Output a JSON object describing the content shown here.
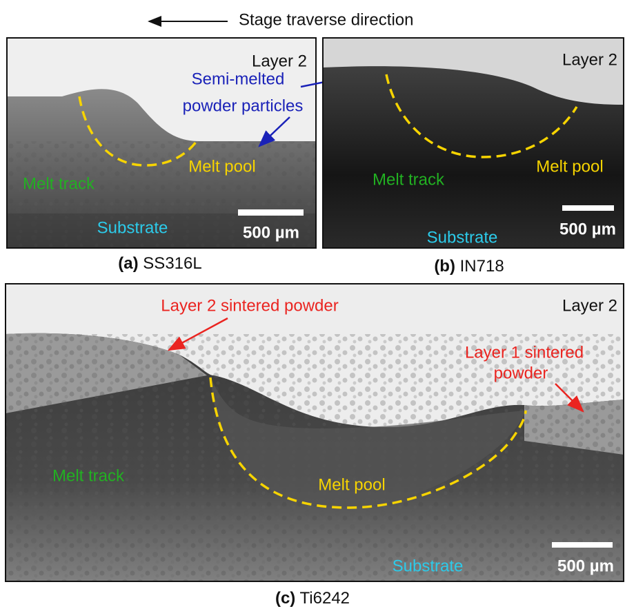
{
  "header": {
    "direction": "Stage traverse direction"
  },
  "panels": [
    {
      "label": "(a)",
      "material": "SS316L",
      "layer": "Layer 2",
      "annotation": [
        "Semi-melted",
        "powder particles"
      ],
      "melt_pool": "Melt pool",
      "melt_track": "Melt track",
      "substrate": "Substrate",
      "scale": "500 µm"
    },
    {
      "label": "(b)",
      "material": "IN718",
      "layer": "Layer 2",
      "melt_pool": "Melt pool",
      "melt_track": "Melt track",
      "substrate": "Substrate",
      "scale": "500 µm"
    },
    {
      "label": "(c)",
      "material": "Ti6242",
      "layer": "Layer 2",
      "annotation": [
        "Layer 2 sintered powder"
      ],
      "annotation2": [
        "Layer 1 sintered",
        "powder"
      ],
      "melt_pool": "Melt pool",
      "melt_track": "Melt track",
      "substrate": "Substrate",
      "scale": "500 µm"
    }
  ]
}
